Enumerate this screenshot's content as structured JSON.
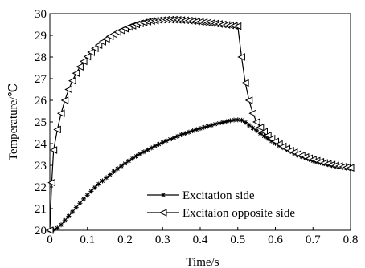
{
  "chart_data": {
    "type": "line",
    "title": "",
    "xlabel": "Time/s",
    "ylabel": "Temperature/℃",
    "xlim": [
      0,
      0.8
    ],
    "ylim": [
      20,
      30
    ],
    "grid": false,
    "legend_position": "lower-right",
    "x_ticks": [
      "0",
      "0.1",
      "0.2",
      "0.3",
      "0.4",
      "0.5",
      "0.6",
      "0.7",
      "0.8"
    ],
    "y_ticks": [
      "20",
      "21",
      "22",
      "23",
      "24",
      "25",
      "26",
      "27",
      "28",
      "29",
      "30"
    ],
    "series": [
      {
        "name": "Excitation side",
        "marker": "asterisk",
        "color": "#000000",
        "x": [
          0,
          0.01,
          0.02,
          0.03,
          0.04,
          0.05,
          0.06,
          0.07,
          0.08,
          0.09,
          0.1,
          0.11,
          0.12,
          0.13,
          0.14,
          0.15,
          0.16,
          0.17,
          0.18,
          0.19,
          0.2,
          0.21,
          0.22,
          0.23,
          0.24,
          0.25,
          0.26,
          0.27,
          0.28,
          0.29,
          0.3,
          0.31,
          0.32,
          0.33,
          0.34,
          0.35,
          0.36,
          0.37,
          0.38,
          0.39,
          0.4,
          0.41,
          0.42,
          0.43,
          0.44,
          0.45,
          0.46,
          0.47,
          0.48,
          0.49,
          0.5,
          0.51,
          0.52,
          0.53,
          0.54,
          0.55,
          0.56,
          0.57,
          0.58,
          0.59,
          0.6,
          0.61,
          0.62,
          0.63,
          0.64,
          0.65,
          0.66,
          0.67,
          0.68,
          0.69,
          0.7,
          0.71,
          0.72,
          0.73,
          0.74,
          0.75,
          0.76,
          0.77,
          0.78,
          0.79,
          0.8
        ],
        "y": [
          20.0,
          20.02,
          20.1,
          20.25,
          20.45,
          20.65,
          20.85,
          21.05,
          21.25,
          21.45,
          21.62,
          21.8,
          21.97,
          22.13,
          22.28,
          22.43,
          22.57,
          22.71,
          22.84,
          22.96,
          23.08,
          23.2,
          23.31,
          23.42,
          23.52,
          23.62,
          23.71,
          23.8,
          23.89,
          23.97,
          24.05,
          24.13,
          24.2,
          24.27,
          24.34,
          24.41,
          24.47,
          24.53,
          24.59,
          24.65,
          24.7,
          24.75,
          24.8,
          24.85,
          24.9,
          24.94,
          24.98,
          25.02,
          25.06,
          25.09,
          25.1,
          25.08,
          24.98,
          24.85,
          24.72,
          24.6,
          24.47,
          24.35,
          24.23,
          24.12,
          24.01,
          23.91,
          23.81,
          23.72,
          23.63,
          23.55,
          23.47,
          23.4,
          23.33,
          23.27,
          23.21,
          23.16,
          23.11,
          23.07,
          23.03,
          22.99,
          22.96,
          22.93,
          22.91,
          22.89,
          22.87
        ]
      },
      {
        "name": "Excitaion opposite side",
        "marker": "left-triangle",
        "color": "#000000",
        "x": [
          0,
          0.005,
          0.01,
          0.02,
          0.03,
          0.04,
          0.05,
          0.06,
          0.07,
          0.08,
          0.09,
          0.1,
          0.11,
          0.12,
          0.13,
          0.14,
          0.15,
          0.16,
          0.17,
          0.18,
          0.19,
          0.2,
          0.21,
          0.22,
          0.23,
          0.24,
          0.25,
          0.26,
          0.27,
          0.28,
          0.29,
          0.3,
          0.31,
          0.32,
          0.33,
          0.34,
          0.35,
          0.36,
          0.37,
          0.38,
          0.39,
          0.4,
          0.41,
          0.42,
          0.43,
          0.44,
          0.45,
          0.46,
          0.47,
          0.48,
          0.49,
          0.5,
          0.51,
          0.52,
          0.53,
          0.54,
          0.55,
          0.56,
          0.57,
          0.58,
          0.59,
          0.6,
          0.61,
          0.62,
          0.63,
          0.64,
          0.65,
          0.66,
          0.67,
          0.68,
          0.69,
          0.7,
          0.71,
          0.72,
          0.73,
          0.74,
          0.75,
          0.76,
          0.77,
          0.78,
          0.79,
          0.8
        ],
        "y": [
          20.0,
          22.2,
          23.7,
          24.65,
          25.4,
          26.0,
          26.5,
          26.9,
          27.25,
          27.55,
          27.8,
          28.02,
          28.22,
          28.4,
          28.55,
          28.7,
          28.83,
          28.95,
          29.05,
          29.15,
          29.23,
          29.31,
          29.38,
          29.44,
          29.5,
          29.55,
          29.59,
          29.63,
          29.66,
          29.68,
          29.7,
          29.71,
          29.72,
          29.72,
          29.72,
          29.71,
          29.7,
          29.69,
          29.68,
          29.66,
          29.64,
          29.62,
          29.6,
          29.58,
          29.56,
          29.54,
          29.52,
          29.5,
          29.48,
          29.46,
          29.44,
          29.42,
          28.0,
          26.8,
          26.0,
          25.4,
          25.0,
          24.75,
          24.55,
          24.38,
          24.23,
          24.1,
          23.98,
          23.87,
          23.77,
          23.68,
          23.6,
          23.52,
          23.45,
          23.38,
          23.32,
          23.26,
          23.21,
          23.16,
          23.11,
          23.07,
          23.03,
          22.99,
          22.96,
          22.93,
          22.91,
          22.88
        ]
      }
    ]
  }
}
